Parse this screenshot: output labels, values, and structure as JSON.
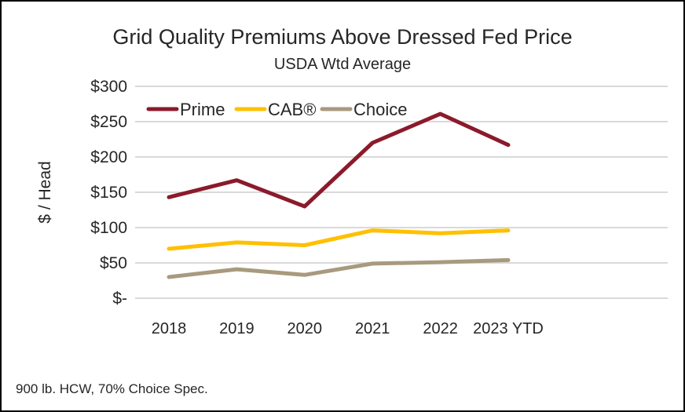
{
  "chart_data": {
    "type": "line",
    "title": "Grid Quality Premiums Above Dressed Fed Price",
    "subtitle": "USDA Wtd Average",
    "ylabel": "$ / Head",
    "xlabel": "",
    "categories": [
      "2018",
      "2019",
      "2020",
      "2021",
      "2022",
      "2023 YTD"
    ],
    "ylim": [
      0,
      300
    ],
    "yticks": [
      0,
      50,
      100,
      150,
      200,
      250,
      300
    ],
    "ytick_labels": [
      "$-",
      "$50",
      "$100",
      "$150",
      "$200",
      "$250",
      "$300"
    ],
    "grid": true,
    "legend_placement": "top-left",
    "series": [
      {
        "name": "Prime",
        "color": "#8B1A2B",
        "values": [
          143,
          167,
          130,
          220,
          261,
          217
        ]
      },
      {
        "name": "CAB®",
        "color": "#FFC000",
        "values": [
          70,
          79,
          75,
          96,
          92,
          96
        ]
      },
      {
        "name": "Choice",
        "color": "#A89A7E",
        "values": [
          30,
          41,
          33,
          49,
          51,
          54
        ]
      }
    ],
    "footnote": "900 lb. HCW, 70% Choice Spec."
  }
}
